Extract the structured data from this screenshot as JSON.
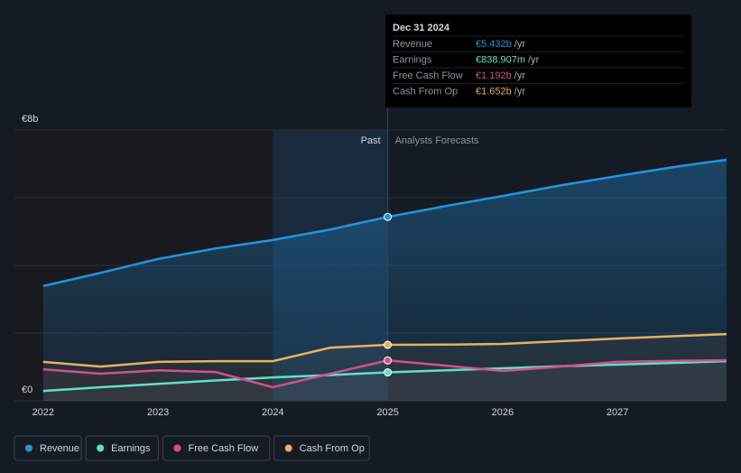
{
  "chart_data": {
    "type": "line",
    "x": [
      2022,
      2022.5,
      2023,
      2023.5,
      2024,
      2024.5,
      2025,
      2025.5,
      2026,
      2026.5,
      2027,
      2027.5,
      2027.95
    ],
    "series": [
      {
        "name": "Revenue",
        "color": "#2394df",
        "values": [
          3.39,
          3.78,
          4.19,
          4.5,
          4.75,
          5.06,
          5.432,
          5.75,
          6.05,
          6.36,
          6.64,
          6.91,
          7.12
        ]
      },
      {
        "name": "Earnings",
        "color": "#5fe0c8",
        "values": [
          0.29,
          0.4,
          0.5,
          0.6,
          0.69,
          0.76,
          0.839,
          0.9,
          0.96,
          1.02,
          1.07,
          1.12,
          1.17
        ]
      },
      {
        "name": "Free Cash Flow",
        "color": "#d0508f",
        "values": [
          0.93,
          0.8,
          0.9,
          0.85,
          0.4,
          0.8,
          1.192,
          1.04,
          0.88,
          1.01,
          1.15,
          1.18,
          1.2
        ]
      },
      {
        "name": "Cash From Op",
        "color": "#e8b060",
        "values": [
          1.15,
          1.01,
          1.15,
          1.17,
          1.17,
          1.57,
          1.652,
          1.66,
          1.68,
          1.76,
          1.84,
          1.91,
          1.97
        ]
      }
    ],
    "xlim": [
      2021.75,
      2027.95
    ],
    "xticks": [
      2022,
      2023,
      2024,
      2025,
      2026,
      2027
    ],
    "ylim": [
      0,
      8
    ],
    "yticks": [
      {
        "value": 0,
        "label": "€0"
      },
      2,
      4,
      6,
      {
        "value": 8,
        "label": "€8b"
      }
    ],
    "grid": true,
    "past_shade_from": 2024,
    "divider_x": 2025,
    "past_label": "Past",
    "forecast_label": "Analysts Forecasts",
    "tooltip": {
      "date": "Dec 31 2024",
      "rows": [
        {
          "label": "Revenue",
          "value": "€5.432b",
          "unit": "/yr"
        },
        {
          "label": "Earnings",
          "value": "€838.907m",
          "unit": "/yr"
        },
        {
          "label": "Free Cash Flow",
          "value": "€1.192b",
          "unit": "/yr"
        },
        {
          "label": "Cash From Op",
          "value": "€1.652b",
          "unit": "/yr"
        }
      ]
    }
  }
}
